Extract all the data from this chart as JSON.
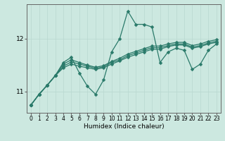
{
  "title": "",
  "xlabel": "Humidex (Indice chaleur)",
  "ylabel": "",
  "bg_color": "#cce8e0",
  "line_color": "#2a7a6a",
  "grid_color": "#b8d8d0",
  "axis_color": "#666666",
  "x_ticks": [
    0,
    1,
    2,
    3,
    4,
    5,
    6,
    7,
    8,
    9,
    10,
    11,
    12,
    13,
    14,
    15,
    16,
    17,
    18,
    19,
    20,
    21,
    22,
    23
  ],
  "y_ticks": [
    11,
    12
  ],
  "ylim": [
    10.6,
    12.65
  ],
  "xlim": [
    -0.5,
    23.5
  ],
  "series": [
    [
      10.75,
      10.95,
      11.12,
      11.3,
      11.55,
      11.65,
      11.35,
      11.1,
      10.95,
      11.22,
      11.75,
      12.0,
      12.52,
      12.27,
      12.27,
      12.22,
      11.55,
      11.75,
      11.82,
      11.78,
      11.42,
      11.52,
      11.78,
      11.9
    ],
    [
      10.75,
      10.95,
      11.12,
      11.3,
      11.45,
      11.52,
      11.48,
      11.45,
      11.42,
      11.45,
      11.52,
      11.58,
      11.65,
      11.7,
      11.75,
      11.8,
      11.8,
      11.85,
      11.88,
      11.88,
      11.82,
      11.85,
      11.9,
      11.93
    ],
    [
      10.75,
      10.95,
      11.12,
      11.3,
      11.48,
      11.56,
      11.52,
      11.48,
      11.44,
      11.47,
      11.55,
      11.6,
      11.68,
      11.73,
      11.78,
      11.83,
      11.83,
      11.87,
      11.9,
      11.9,
      11.84,
      11.87,
      11.92,
      11.95
    ],
    [
      10.75,
      10.95,
      11.12,
      11.3,
      11.52,
      11.6,
      11.55,
      11.5,
      11.46,
      11.49,
      11.57,
      11.63,
      11.71,
      11.76,
      11.81,
      11.86,
      11.86,
      11.9,
      11.93,
      11.93,
      11.87,
      11.9,
      11.95,
      11.98
    ]
  ],
  "marker_size": 2.5,
  "line_width": 0.9,
  "xlabel_fontsize": 6.5,
  "tick_fontsize": 5.5,
  "ylabel_fontsize": 6.5
}
